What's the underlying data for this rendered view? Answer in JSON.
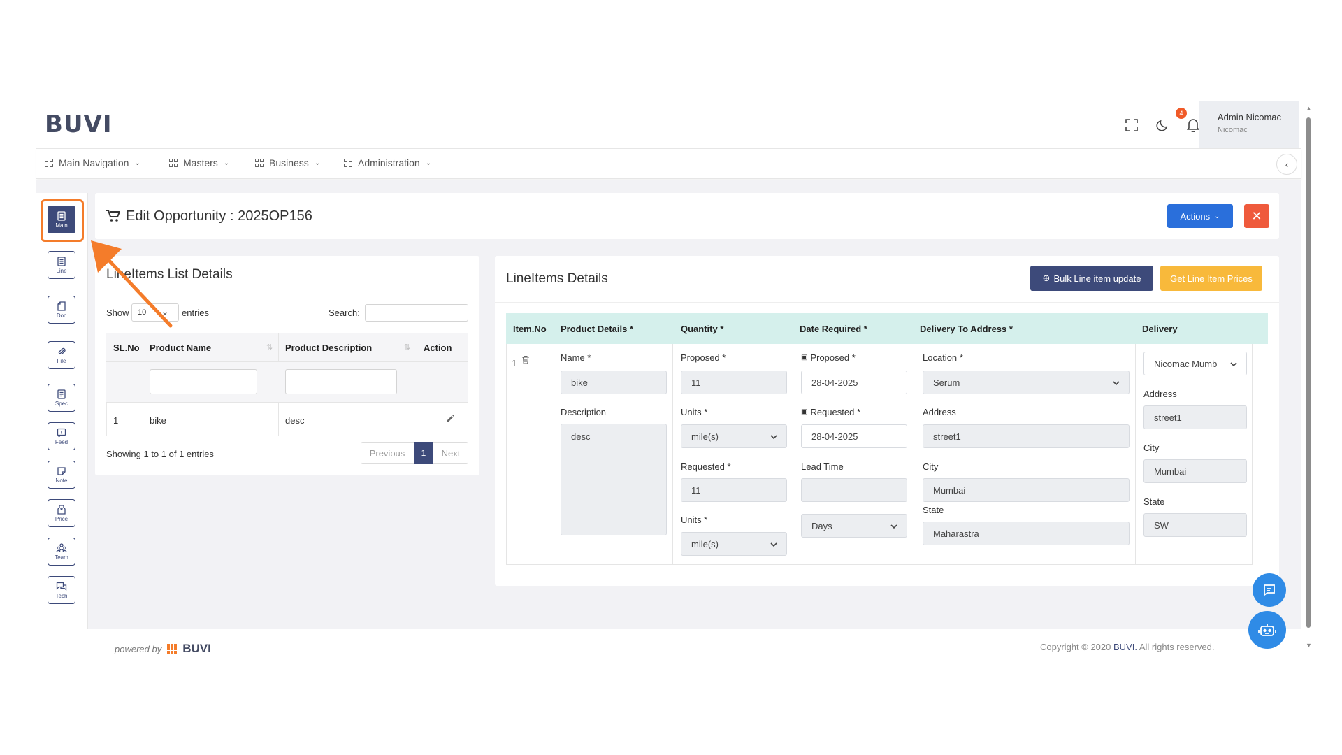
{
  "brand": {
    "logo_text": "BUVI",
    "footer_logo_text": "BUVI"
  },
  "header": {
    "user_name": "Admin Nicomac",
    "user_org": "Nicomac",
    "notification_count": "4",
    "icons": [
      "fullscreen-icon",
      "moon-icon",
      "bell-icon"
    ]
  },
  "nav": {
    "items": [
      {
        "label": "Main Navigation"
      },
      {
        "label": "Masters"
      },
      {
        "label": "Business"
      },
      {
        "label": "Administration"
      }
    ]
  },
  "sidebar": {
    "items": [
      {
        "label": "Main",
        "icon": "document-icon",
        "active": true
      },
      {
        "label": "Line",
        "icon": "list-icon"
      },
      {
        "label": "Doc",
        "icon": "doc-icon"
      },
      {
        "label": "File",
        "icon": "paperclip-icon"
      },
      {
        "label": "Spec",
        "icon": "spec-icon"
      },
      {
        "label": "Feed",
        "icon": "feedback-icon"
      },
      {
        "label": "Note",
        "icon": "note-icon"
      },
      {
        "label": "Price",
        "icon": "tag-icon"
      },
      {
        "label": "Team",
        "icon": "team-icon"
      },
      {
        "label": "Tech",
        "icon": "chat-icon"
      }
    ]
  },
  "page": {
    "title": "Edit Opportunity : 2025OP156",
    "actions_label": "Actions",
    "close_label": "✕"
  },
  "list_card": {
    "title": "LineItems List Details",
    "show_label": "Show",
    "entries_value": "10",
    "entries_label": "entries",
    "search_label": "Search:",
    "columns": [
      "SL.No",
      "Product Name",
      "Product Description",
      "Action"
    ],
    "rows": [
      {
        "sl": "1",
        "name": "bike",
        "description": "desc"
      }
    ],
    "info": "Showing 1 to 1 of 1 entries",
    "pagination": {
      "previous": "Previous",
      "page": "1",
      "next": "Next"
    }
  },
  "details_card": {
    "title": "LineItems Details",
    "bulk_button": "Bulk Line item update",
    "prices_button": "Get Line Item Prices",
    "columns": [
      "Item.No",
      "Product Details *",
      "Quantity *",
      "Date Required *",
      "Delivery To Address *",
      "Delivery"
    ],
    "item": {
      "no": "1",
      "name_label": "Name *",
      "name_value": "bike",
      "description_label": "Description",
      "description_value": "desc",
      "proposed_label": "Proposed *",
      "proposed_value": "11",
      "units_label": "Units *",
      "units_value": "mile(s)",
      "requested_label": "Requested *",
      "requested_value": "11",
      "units2_label": "Units *",
      "units2_value": "mile(s)",
      "date_proposed_label": "Proposed *",
      "date_proposed_value": "28-04-2025",
      "date_requested_label": "Requested *",
      "date_requested_value": "28-04-2025",
      "lead_time_label": "Lead Time",
      "lead_time_value": "",
      "lead_unit_value": "Days",
      "location_label": "Location *",
      "location_value": "Serum",
      "address_label": "Address",
      "address_value": "street1",
      "city_label": "City",
      "city_value": "Mumbai",
      "state_label": "State",
      "state_value": "Maharastra",
      "delivery_select": "Nicomac Mumb",
      "delivery_address_label": "Address",
      "delivery_address_value": "street1",
      "delivery_city_label": "City",
      "delivery_city_value": "Mumbai",
      "delivery_state_label": "State",
      "delivery_state_value": "SW"
    }
  },
  "footer": {
    "powered_by": "powered by",
    "copyright_prefix": "Copyright © 2020 ",
    "copyright_brand": "BUVI.",
    "copyright_suffix": " All rights reserved."
  },
  "colors": {
    "brand_navy": "#3d4a7a",
    "primary_blue": "#2a6fdb",
    "danger": "#ef5a3c",
    "warning": "#f8b93b",
    "grid_header": "#d5f0ec",
    "highlight_orange": "#f47c2a"
  }
}
